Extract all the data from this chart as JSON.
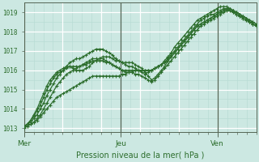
{
  "title": "Pression niveau de la mer( hPa )",
  "bg_color": "#cce8e2",
  "grid_color_major": "#ffffff",
  "grid_color_minor": "#b8dcd5",
  "line_color": "#2d6e2d",
  "tick_label_color": "#2d6e2d",
  "ylim": [
    1012.8,
    1019.5
  ],
  "yticks": [
    1013,
    1014,
    1015,
    1016,
    1017,
    1018,
    1019
  ],
  "day_labels": [
    "Mer",
    "Jeu",
    "Ven"
  ],
  "day_positions": [
    0.0,
    0.417,
    0.833
  ],
  "num_points": 72,
  "series": [
    [
      1013.1,
      1013.2,
      1013.4,
      1013.6,
      1013.9,
      1014.2,
      1014.6,
      1015.0,
      1015.3,
      1015.6,
      1015.8,
      1015.9,
      1016.0,
      1016.1,
      1016.2,
      1016.2,
      1016.2,
      1016.2,
      1016.3,
      1016.3,
      1016.4,
      1016.5,
      1016.5,
      1016.5,
      1016.5,
      1016.4,
      1016.4,
      1016.3,
      1016.2,
      1016.1,
      1016.0,
      1016.0,
      1016.0,
      1016.0,
      1016.0,
      1016.0,
      1016.0,
      1016.0,
      1016.0,
      1016.0,
      1016.1,
      1016.2,
      1016.3,
      1016.4,
      1016.6,
      1016.8,
      1017.0,
      1017.2,
      1017.4,
      1017.6,
      1017.8,
      1018.0,
      1018.2,
      1018.4,
      1018.6,
      1018.7,
      1018.8,
      1018.9,
      1018.9,
      1019.0,
      1019.1,
      1019.2,
      1019.2,
      1019.2,
      1019.1,
      1019.0,
      1018.9,
      1018.8,
      1018.7,
      1018.5,
      1018.4,
      1018.3
    ],
    [
      1013.1,
      1013.1,
      1013.2,
      1013.3,
      1013.4,
      1013.6,
      1013.8,
      1014.0,
      1014.2,
      1014.4,
      1014.6,
      1014.7,
      1014.8,
      1014.9,
      1015.0,
      1015.1,
      1015.2,
      1015.3,
      1015.4,
      1015.5,
      1015.6,
      1015.7,
      1015.7,
      1015.7,
      1015.7,
      1015.7,
      1015.7,
      1015.7,
      1015.7,
      1015.7,
      1015.8,
      1015.8,
      1015.9,
      1015.9,
      1016.0,
      1016.0,
      1016.0,
      1016.0,
      1016.0,
      1016.0,
      1016.1,
      1016.2,
      1016.3,
      1016.4,
      1016.5,
      1016.7,
      1016.9,
      1017.1,
      1017.3,
      1017.5,
      1017.7,
      1017.9,
      1018.1,
      1018.3,
      1018.4,
      1018.5,
      1018.6,
      1018.7,
      1018.8,
      1018.9,
      1019.0,
      1019.1,
      1019.1,
      1019.1,
      1019.0,
      1018.9,
      1018.8,
      1018.7,
      1018.6,
      1018.5,
      1018.4,
      1018.3
    ],
    [
      1013.1,
      1013.2,
      1013.3,
      1013.5,
      1013.7,
      1014.0,
      1014.3,
      1014.7,
      1015.0,
      1015.3,
      1015.6,
      1015.8,
      1016.0,
      1016.2,
      1016.4,
      1016.5,
      1016.6,
      1016.6,
      1016.7,
      1016.8,
      1016.9,
      1017.0,
      1017.1,
      1017.1,
      1017.1,
      1017.0,
      1016.9,
      1016.8,
      1016.6,
      1016.5,
      1016.4,
      1016.3,
      1016.2,
      1016.2,
      1016.1,
      1016.0,
      1015.9,
      1015.8,
      1015.9,
      1016.0,
      1016.1,
      1016.2,
      1016.3,
      1016.5,
      1016.7,
      1016.9,
      1017.2,
      1017.4,
      1017.6,
      1017.8,
      1018.0,
      1018.2,
      1018.4,
      1018.6,
      1018.7,
      1018.8,
      1018.9,
      1019.0,
      1019.1,
      1019.2,
      1019.3,
      1019.3,
      1019.3,
      1019.2,
      1019.1,
      1019.0,
      1018.9,
      1018.8,
      1018.7,
      1018.6,
      1018.5,
      1018.4
    ],
    [
      1013.0,
      1013.1,
      1013.2,
      1013.3,
      1013.5,
      1013.7,
      1014.0,
      1014.3,
      1014.6,
      1014.9,
      1015.2,
      1015.4,
      1015.6,
      1015.8,
      1015.9,
      1016.0,
      1016.1,
      1016.2,
      1016.3,
      1016.4,
      1016.5,
      1016.6,
      1016.6,
      1016.6,
      1016.6,
      1016.5,
      1016.4,
      1016.3,
      1016.2,
      1016.1,
      1016.0,
      1015.9,
      1015.9,
      1015.9,
      1015.8,
      1015.8,
      1015.7,
      1015.6,
      1015.5,
      1015.4,
      1015.5,
      1015.7,
      1015.9,
      1016.1,
      1016.3,
      1016.5,
      1016.7,
      1016.9,
      1017.1,
      1017.3,
      1017.5,
      1017.7,
      1017.9,
      1018.1,
      1018.3,
      1018.4,
      1018.5,
      1018.6,
      1018.7,
      1018.8,
      1018.9,
      1019.0,
      1019.1,
      1019.1,
      1019.0,
      1018.9,
      1018.8,
      1018.7,
      1018.6,
      1018.5,
      1018.4,
      1018.3
    ],
    [
      1013.1,
      1013.2,
      1013.4,
      1013.7,
      1014.0,
      1014.4,
      1014.8,
      1015.2,
      1015.5,
      1015.7,
      1015.9,
      1016.0,
      1016.1,
      1016.2,
      1016.2,
      1016.1,
      1016.0,
      1016.0,
      1016.0,
      1016.1,
      1016.2,
      1016.4,
      1016.5,
      1016.6,
      1016.7,
      1016.7,
      1016.7,
      1016.6,
      1016.5,
      1016.5,
      1016.4,
      1016.4,
      1016.4,
      1016.4,
      1016.3,
      1016.2,
      1016.1,
      1015.9,
      1015.7,
      1015.5,
      1015.6,
      1015.8,
      1016.0,
      1016.2,
      1016.5,
      1016.7,
      1016.9,
      1017.1,
      1017.3,
      1017.5,
      1017.7,
      1017.9,
      1018.1,
      1018.3,
      1018.4,
      1018.5,
      1018.6,
      1018.7,
      1018.8,
      1018.9,
      1019.0,
      1019.1,
      1019.2,
      1019.2,
      1019.1,
      1019.0,
      1018.9,
      1018.8,
      1018.7,
      1018.6,
      1018.5,
      1018.4
    ]
  ]
}
